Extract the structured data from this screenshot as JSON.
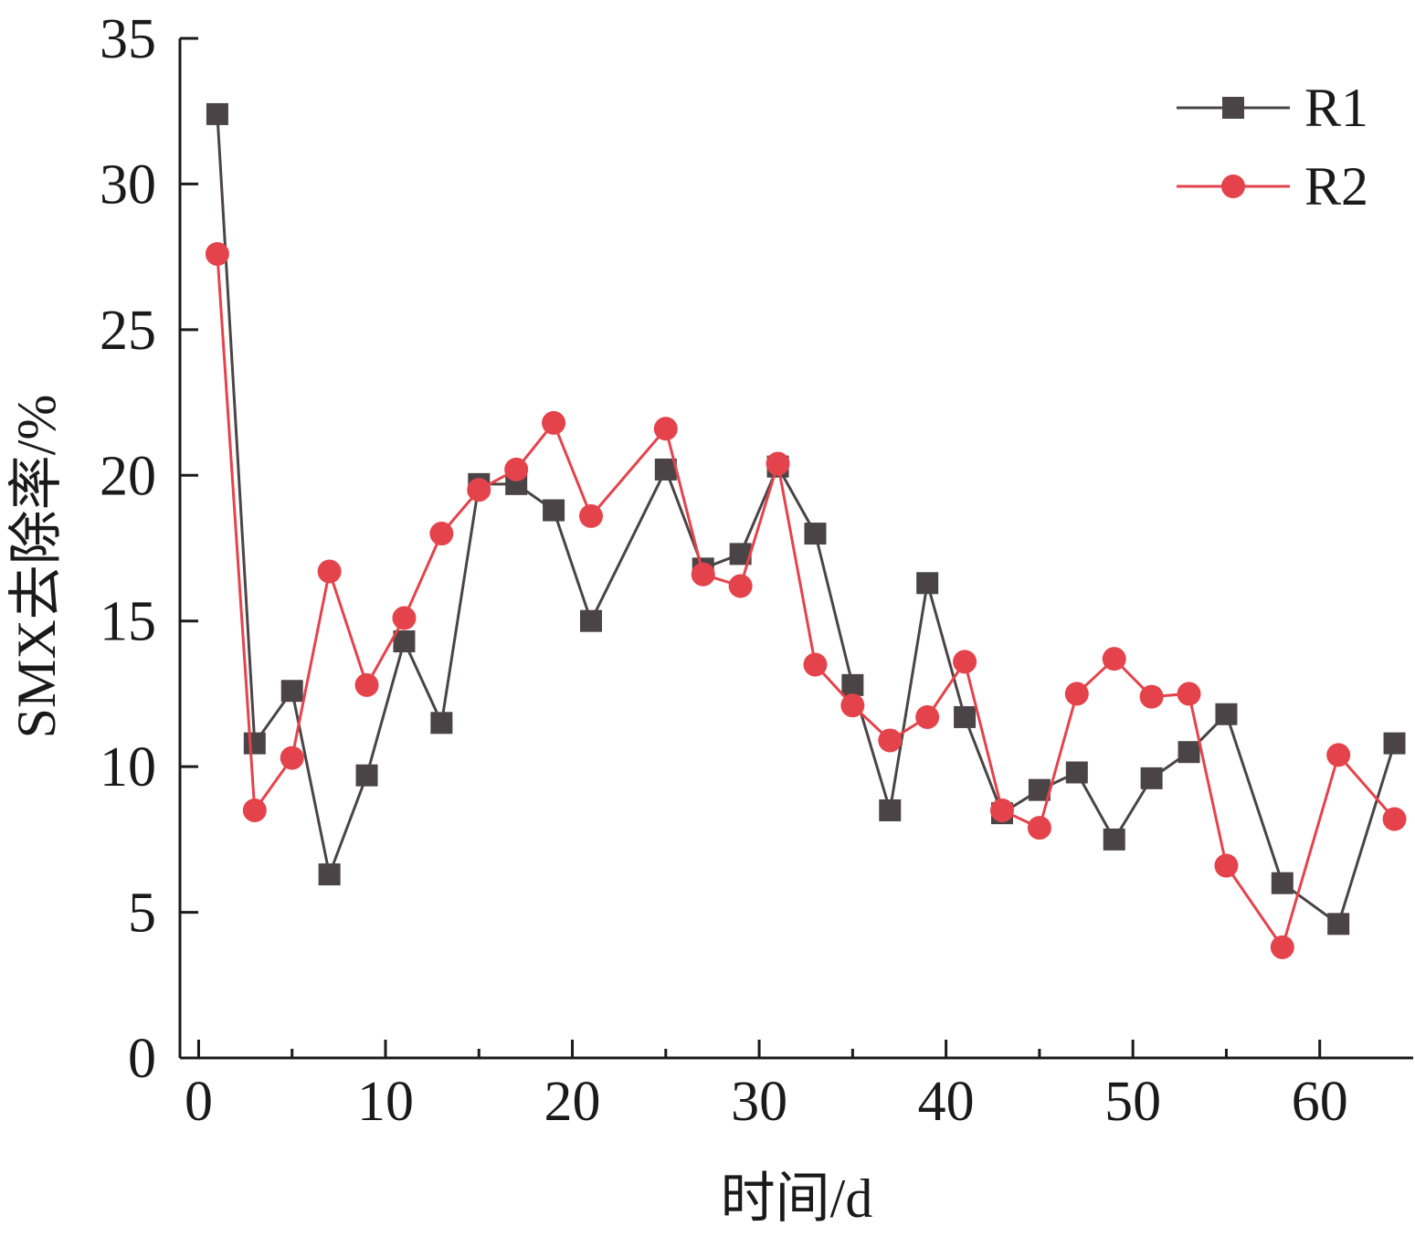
{
  "chart_data": {
    "type": "line",
    "xlabel": "时间/d",
    "ylabel": "SMX去除率/%",
    "xlim": [
      -1,
      65
    ],
    "ylim": [
      0,
      35
    ],
    "xticks": [
      0,
      10,
      20,
      30,
      40,
      50,
      60
    ],
    "yticks": [
      0,
      5,
      10,
      15,
      20,
      25,
      30,
      35
    ],
    "legend_position": "top-right",
    "grid": false,
    "series": [
      {
        "name": "R1",
        "color": "#4a4446",
        "marker": "square",
        "x": [
          1,
          3,
          5,
          7,
          9,
          11,
          13,
          15,
          17,
          19,
          21,
          25,
          27,
          29,
          31,
          33,
          35,
          37,
          39,
          41,
          43,
          45,
          47,
          49,
          51,
          53,
          55,
          58,
          61,
          64
        ],
        "values": [
          32.4,
          10.8,
          12.6,
          6.3,
          9.7,
          14.3,
          11.5,
          19.7,
          19.7,
          18.8,
          15.0,
          20.2,
          16.8,
          17.3,
          20.3,
          18.0,
          12.8,
          8.5,
          16.3,
          11.7,
          8.4,
          9.2,
          9.8,
          7.5,
          9.6,
          10.5,
          11.8,
          6.0,
          4.6,
          10.8
        ]
      },
      {
        "name": "R2",
        "color": "#e5434b",
        "marker": "circle",
        "x": [
          1,
          3,
          5,
          7,
          9,
          11,
          13,
          15,
          17,
          19,
          21,
          25,
          27,
          29,
          31,
          33,
          35,
          37,
          39,
          41,
          43,
          45,
          47,
          49,
          51,
          53,
          55,
          58,
          61,
          64
        ],
        "values": [
          27.6,
          8.5,
          10.3,
          16.7,
          12.8,
          15.1,
          18.0,
          19.5,
          20.2,
          21.8,
          18.6,
          21.6,
          16.6,
          16.2,
          20.4,
          13.5,
          12.1,
          10.9,
          11.7,
          13.6,
          8.5,
          7.9,
          12.5,
          13.7,
          12.4,
          12.5,
          6.6,
          3.8,
          10.4,
          8.2
        ]
      }
    ]
  }
}
